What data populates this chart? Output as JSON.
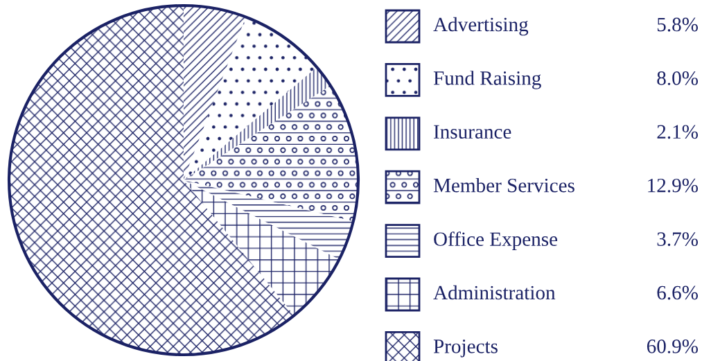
{
  "chart_data": {
    "type": "pie",
    "legend": "right",
    "categories": [
      "Advertising",
      "Fund Raising",
      "Insurance",
      "Member Services",
      "Office Expense",
      "Administration",
      "Projects"
    ],
    "values": [
      5.8,
      8.0,
      2.1,
      12.9,
      3.7,
      6.6,
      60.9
    ],
    "value_labels": [
      "5.8%",
      "8.0%",
      "2.1%",
      "12.9%",
      "3.7%",
      "6.6%",
      "60.9%"
    ],
    "colors": [
      "#1b2265",
      "#1b2265",
      "#1b2265",
      "#1b2265",
      "#1b2265",
      "#1b2265",
      "#1b2265"
    ]
  }
}
